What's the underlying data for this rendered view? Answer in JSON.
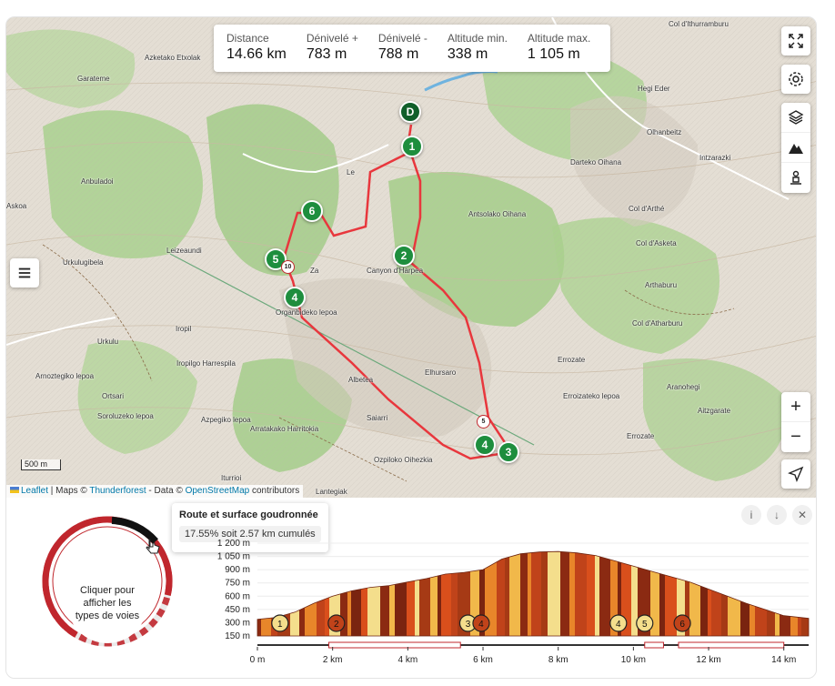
{
  "stats": [
    {
      "label": "Distance",
      "value": "14.66 km"
    },
    {
      "label": "Dénivelé +",
      "value": "783 m"
    },
    {
      "label": "Dénivelé -",
      "value": "788 m"
    },
    {
      "label": "Altitude min.",
      "value": "338 m"
    },
    {
      "label": "Altitude max.",
      "value": "1 105 m"
    }
  ],
  "map_labels": [
    "Azketako Etxolak",
    "Garateme",
    "Anbuladoi",
    "Askoa",
    "Leizeaundi",
    "Urkulugibela",
    "Iropil",
    "Iropilgo Harrespila",
    "Urkulu",
    "Arnoztegiko lepoa",
    "Ortsari",
    "Soroluzeko lepoa",
    "Azpegiko lepoa",
    "Arratakako Harritokia",
    "Saiarri",
    "Albetea",
    "Ozpiloko Oihezkia",
    "Iturrioi",
    "Lantegiak",
    "Elhursaro",
    "Canyon d'Harpea",
    "Antsolako Oihana",
    "Darteko Oihana",
    "Intzarazki",
    "Olhanbeitz",
    "Hegi Eder",
    "Col d'Ithurramburu",
    "Col d'Arthé",
    "Col d'Asketa",
    "Arthaburu",
    "Col d'Atharburu",
    "Errozate",
    "Aranohegi",
    "Aitzgarate",
    "Erroizateko lepoa",
    "Errozate",
    "Organbideko lepoa",
    "Za",
    "Le"
  ],
  "markers": [
    "D",
    "1",
    "2",
    "3",
    "4",
    "4",
    "5",
    "6"
  ],
  "km_markers": [
    "10",
    "5"
  ],
  "scale_label": "500 m",
  "attribution": {
    "leaflet": "Leaflet",
    "maps": " | Maps © ",
    "thunderforest": "Thunderforest",
    "data": " - Data © ",
    "osm": "OpenStreetMap",
    "contrib": " contributors"
  },
  "tooltip": {
    "title": "Route et surface goudronnée",
    "value": "17.55% soit 2.57 km cumulés"
  },
  "donut_label": "Cliquer pour afficher les types de voies",
  "colors": {
    "route": "#e8373d",
    "marker": "#1e8e3e",
    "accent": "#c0272d"
  },
  "chart_data": {
    "type": "area",
    "title": "",
    "xlabel": "",
    "ylabel": "",
    "x_ticks": [
      "0 m",
      "2 km",
      "4 km",
      "6 km",
      "8 km",
      "10 km",
      "12 km",
      "14 km"
    ],
    "y_ticks": [
      "1 200 m",
      "1 050 m",
      "900 m",
      "750 m",
      "600 m",
      "450 m",
      "300 m",
      "150 m"
    ],
    "x": [
      0,
      0.5,
      1,
      1.5,
      2,
      2.5,
      3,
      3.5,
      4,
      4.5,
      5,
      5.5,
      6,
      6.5,
      7,
      7.5,
      8,
      8.5,
      9,
      9.5,
      10,
      10.5,
      11,
      11.5,
      12,
      12.5,
      13,
      13.5,
      14,
      14.66
    ],
    "y": [
      338,
      360,
      420,
      520,
      600,
      660,
      700,
      720,
      760,
      800,
      850,
      870,
      900,
      1020,
      1080,
      1100,
      1105,
      1090,
      1060,
      1000,
      940,
      880,
      820,
      760,
      680,
      600,
      520,
      450,
      380,
      350
    ],
    "xlim": [
      0,
      14.66
    ],
    "ylim": [
      150,
      1200
    ],
    "waypoints": [
      {
        "label": "1",
        "x": 0.6
      },
      {
        "label": "2",
        "x": 2.1
      },
      {
        "label": "3",
        "x": 5.6
      },
      {
        "label": "4",
        "x": 5.95
      },
      {
        "label": "4",
        "x": 9.6
      },
      {
        "label": "5",
        "x": 10.3
      },
      {
        "label": "6",
        "x": 11.3
      }
    ]
  }
}
